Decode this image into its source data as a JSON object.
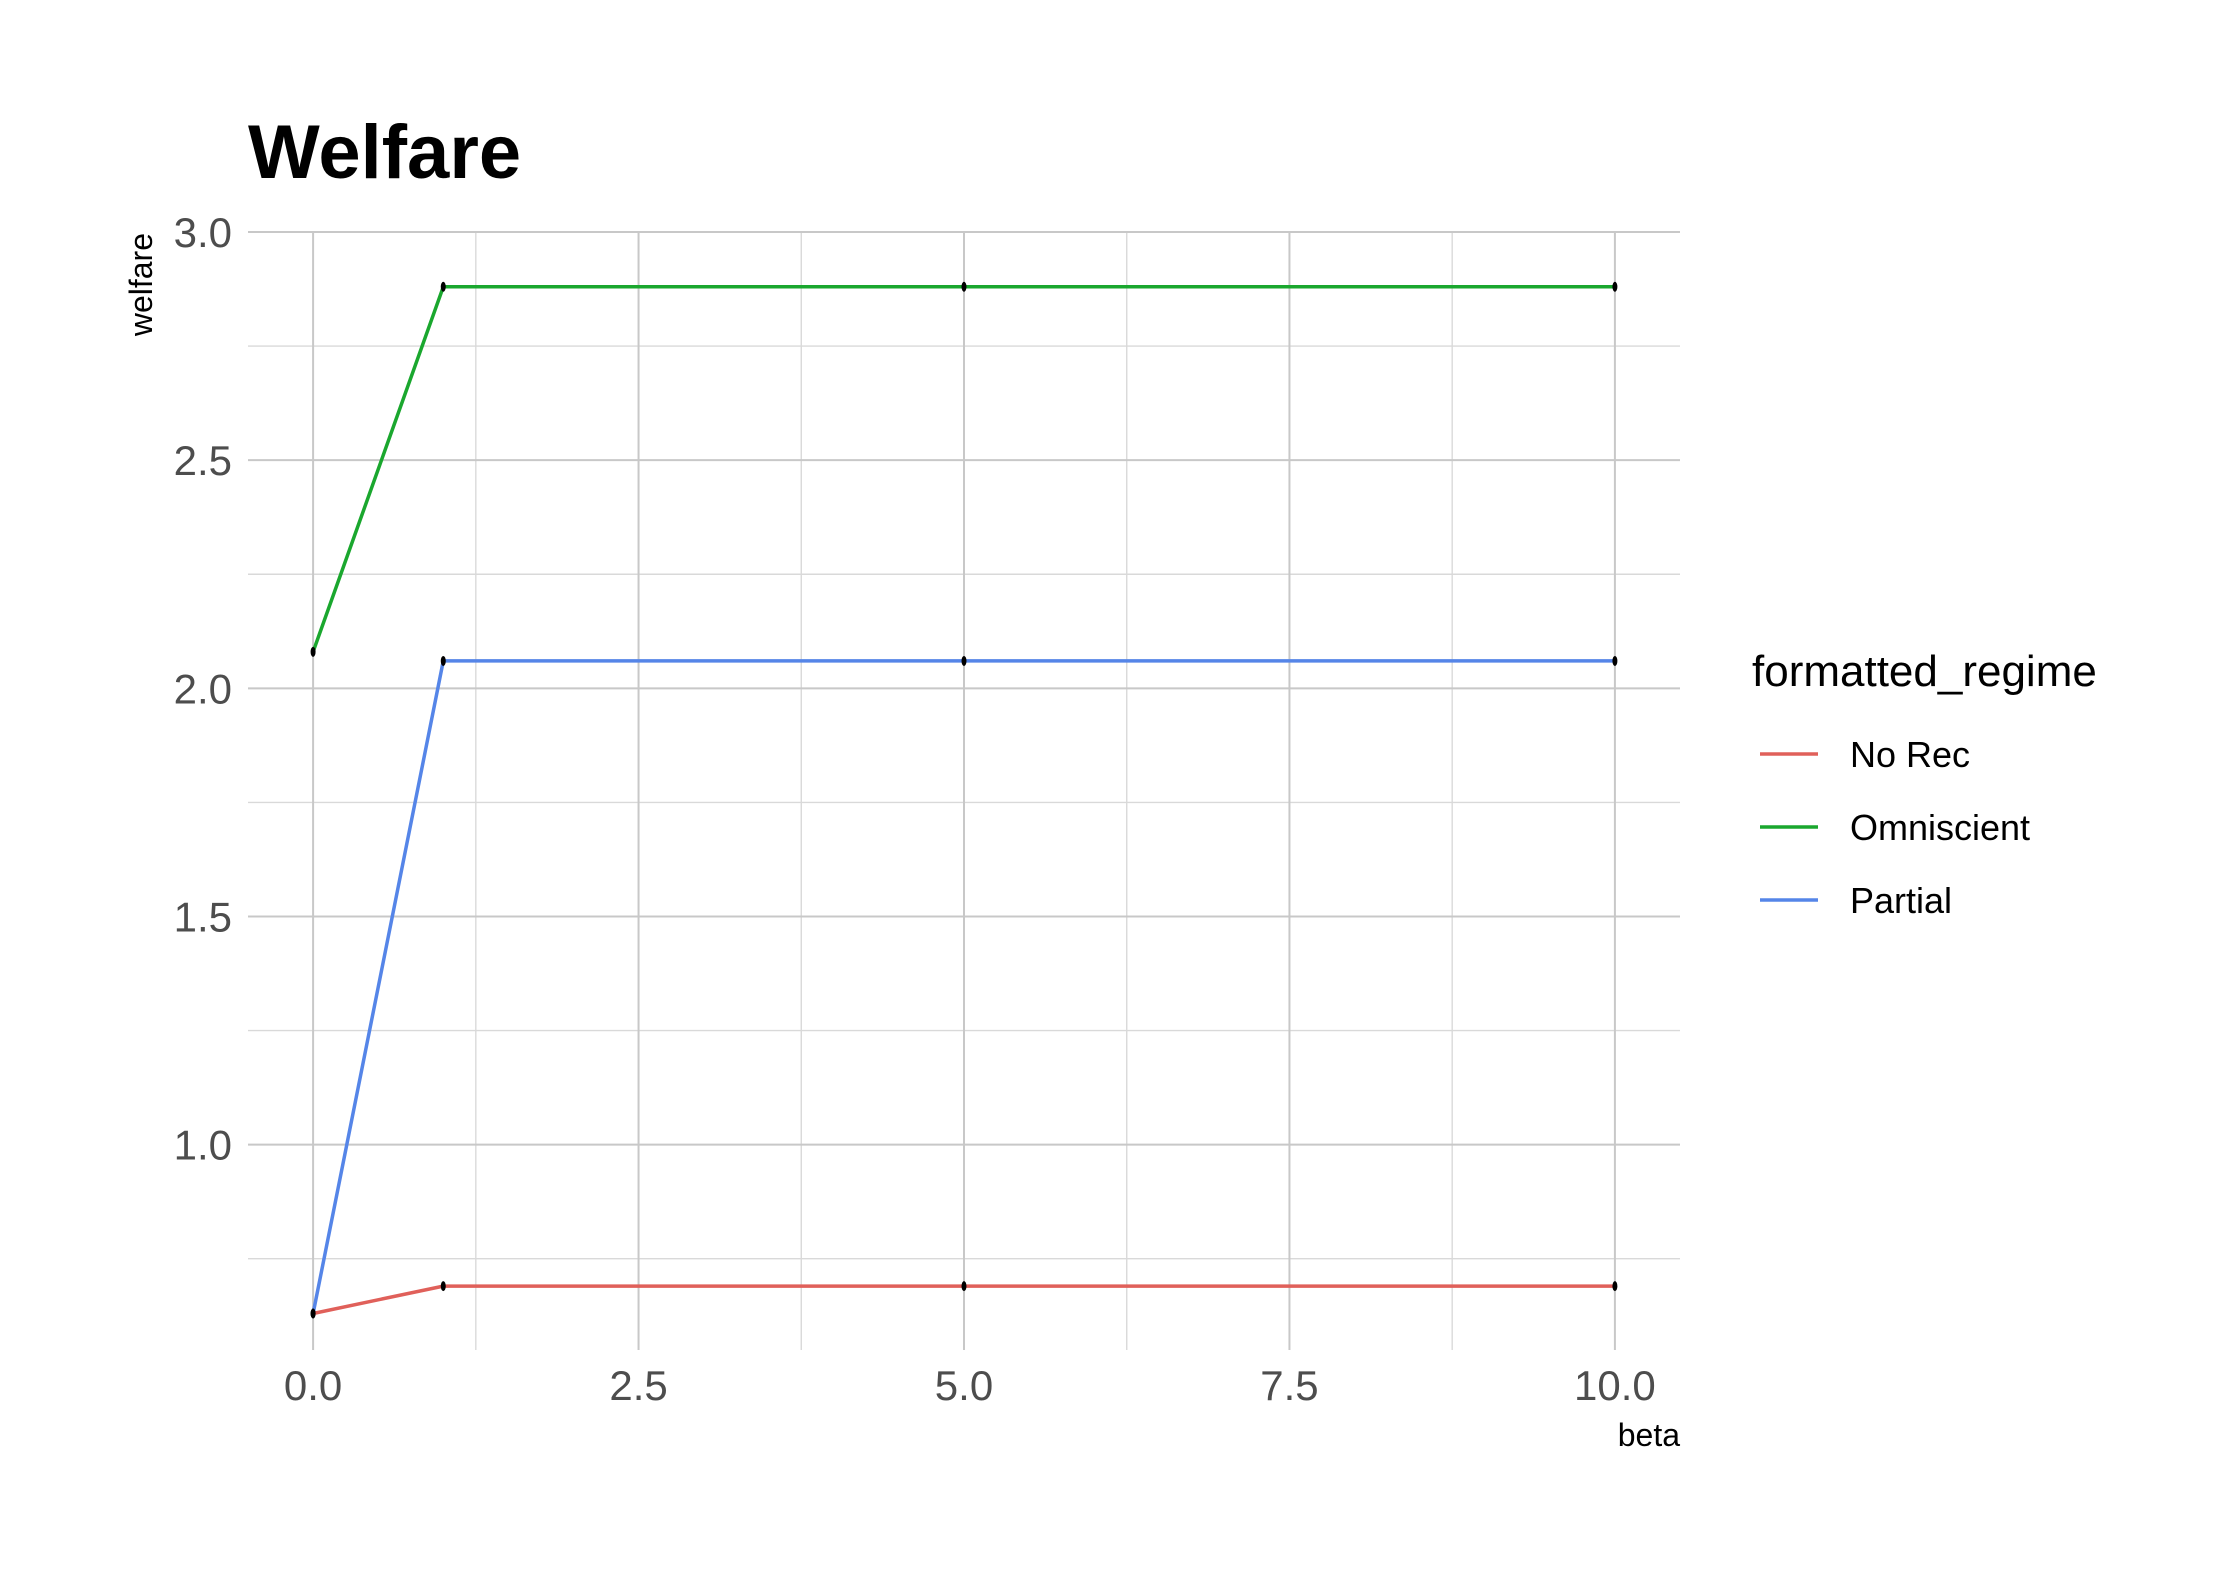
{
  "chart_data": {
    "type": "line",
    "title": "Welfare",
    "xlabel": "beta",
    "ylabel": "welfare",
    "xlim": [
      -0.5,
      10.5
    ],
    "ylim": [
      0.55,
      3.0
    ],
    "x_ticks": [
      0.0,
      2.5,
      5.0,
      7.5,
      10.0
    ],
    "x_tick_labels": [
      "0.0",
      "2.5",
      "5.0",
      "7.5",
      "10.0"
    ],
    "y_ticks": [
      1.0,
      1.5,
      2.0,
      2.5,
      3.0
    ],
    "y_tick_labels": [
      "1.0",
      "1.5",
      "2.0",
      "2.5",
      "3.0"
    ],
    "grid": true,
    "legend": {
      "title": "formatted_regime",
      "position": "right"
    },
    "x": [
      0,
      1,
      5,
      10
    ],
    "series": [
      {
        "name": "No Rec",
        "color": "#e0605a",
        "values": [
          0.63,
          0.69,
          0.69,
          0.69
        ]
      },
      {
        "name": "Omniscient",
        "color": "#1aa72e",
        "values": [
          2.08,
          2.88,
          2.88,
          2.88
        ]
      },
      {
        "name": "Partial",
        "color": "#5585e8",
        "values": [
          0.63,
          2.06,
          2.06,
          2.06
        ]
      }
    ]
  }
}
